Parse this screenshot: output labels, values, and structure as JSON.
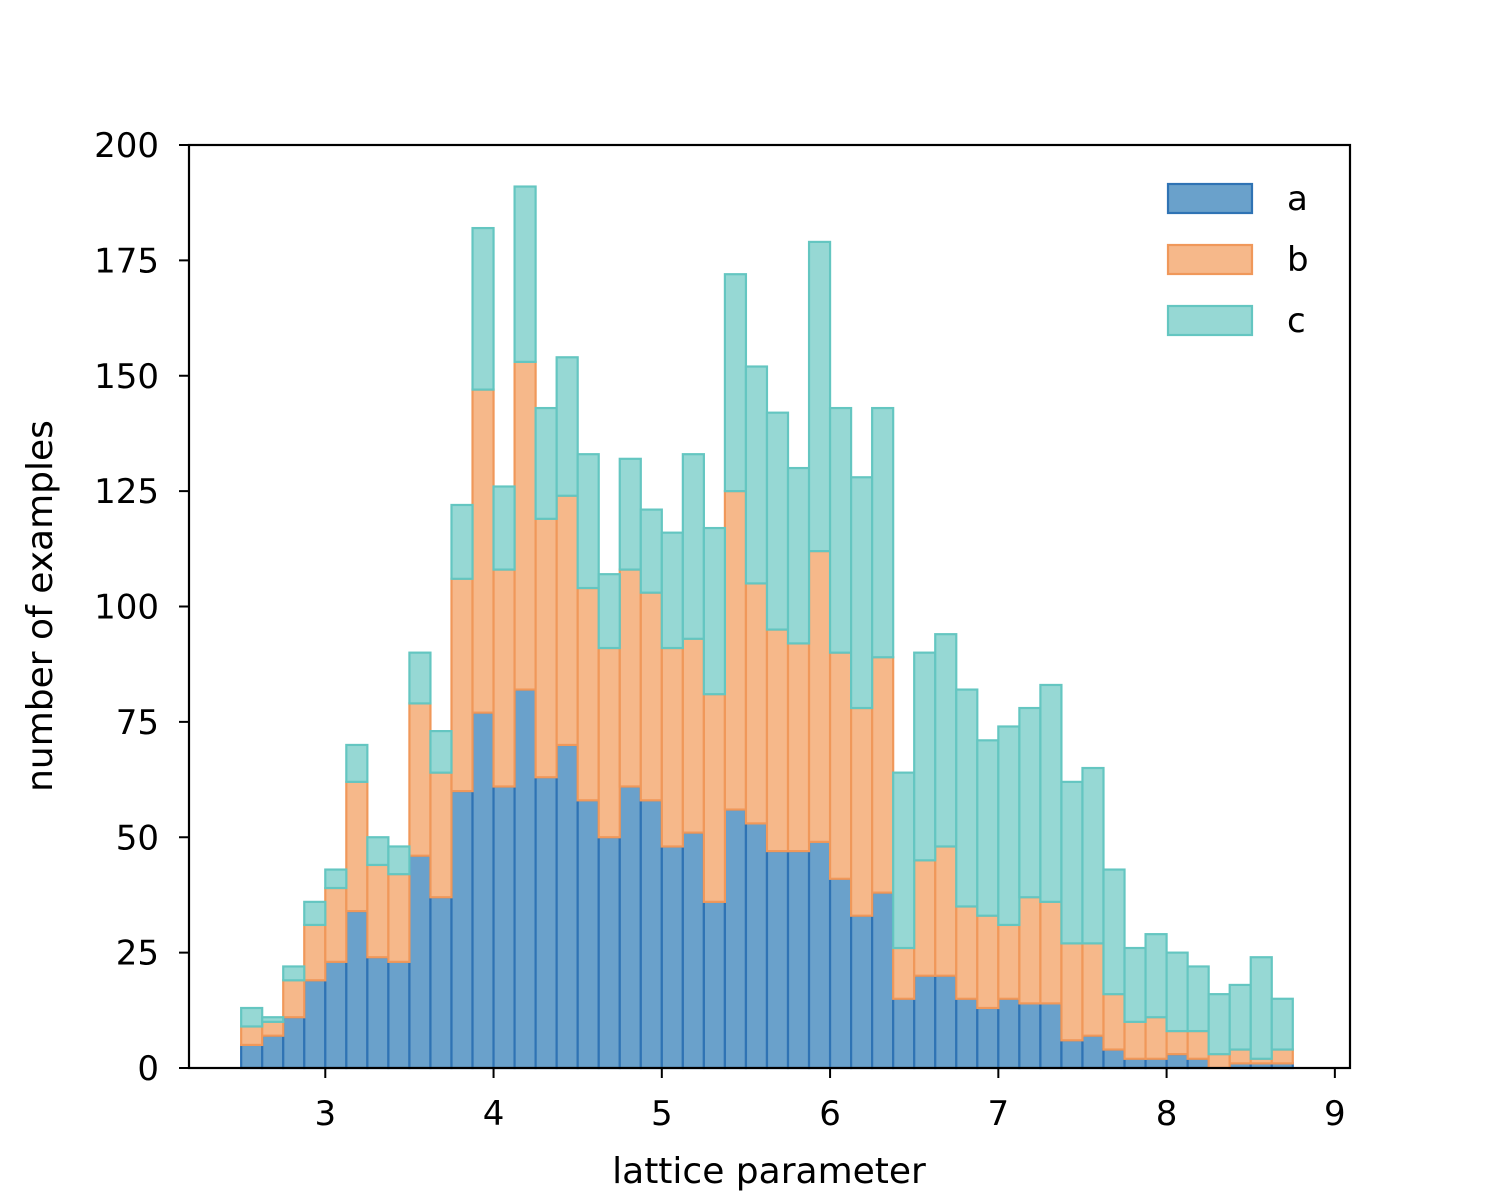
{
  "chart_data": {
    "type": "bar",
    "stacked": true,
    "histogram": true,
    "bin_start": 2.5,
    "bin_width": 0.125,
    "xlabel": "lattice parameter",
    "ylabel": "number of examples",
    "xlim": [
      2.19,
      9.09
    ],
    "ylim": [
      0,
      200
    ],
    "xticks": [
      3,
      4,
      5,
      6,
      7,
      8,
      9
    ],
    "yticks": [
      0,
      25,
      50,
      75,
      100,
      125,
      150,
      175,
      200
    ],
    "grid": false,
    "legend_position": "top-right",
    "series": [
      {
        "name": "a",
        "fill": "#6aa1cb",
        "edge": "#2f73b4",
        "values": [
          5,
          7,
          11,
          19,
          23,
          34,
          24,
          23,
          46,
          37,
          60,
          77,
          61,
          82,
          63,
          70,
          58,
          50,
          61,
          58,
          48,
          51,
          36,
          56,
          53,
          47,
          47,
          49,
          41,
          33,
          38,
          15,
          20,
          20,
          15,
          13,
          15,
          14,
          14,
          6,
          7,
          4,
          2,
          2,
          3,
          2,
          0,
          1,
          1,
          1
        ]
      },
      {
        "name": "b",
        "fill": "#f6b88a",
        "edge": "#f0985a",
        "values": [
          4,
          3,
          8,
          12,
          16,
          28,
          20,
          19,
          33,
          27,
          46,
          70,
          47,
          71,
          56,
          54,
          46,
          41,
          47,
          45,
          43,
          42,
          45,
          69,
          52,
          48,
          45,
          63,
          49,
          45,
          51,
          11,
          25,
          28,
          20,
          20,
          16,
          23,
          22,
          21,
          20,
          12,
          8,
          9,
          5,
          6,
          3,
          3,
          1,
          3
        ]
      },
      {
        "name": "c",
        "fill": "#96d8d4",
        "edge": "#64c6c1",
        "values": [
          4,
          1,
          3,
          5,
          4,
          8,
          6,
          6,
          11,
          9,
          16,
          35,
          18,
          38,
          24,
          30,
          29,
          16,
          24,
          18,
          25,
          40,
          36,
          47,
          47,
          47,
          38,
          67,
          53,
          50,
          54,
          38,
          45,
          46,
          47,
          38,
          43,
          41,
          47,
          35,
          38,
          27,
          16,
          18,
          17,
          14,
          13,
          14,
          22,
          11
        ]
      }
    ]
  }
}
